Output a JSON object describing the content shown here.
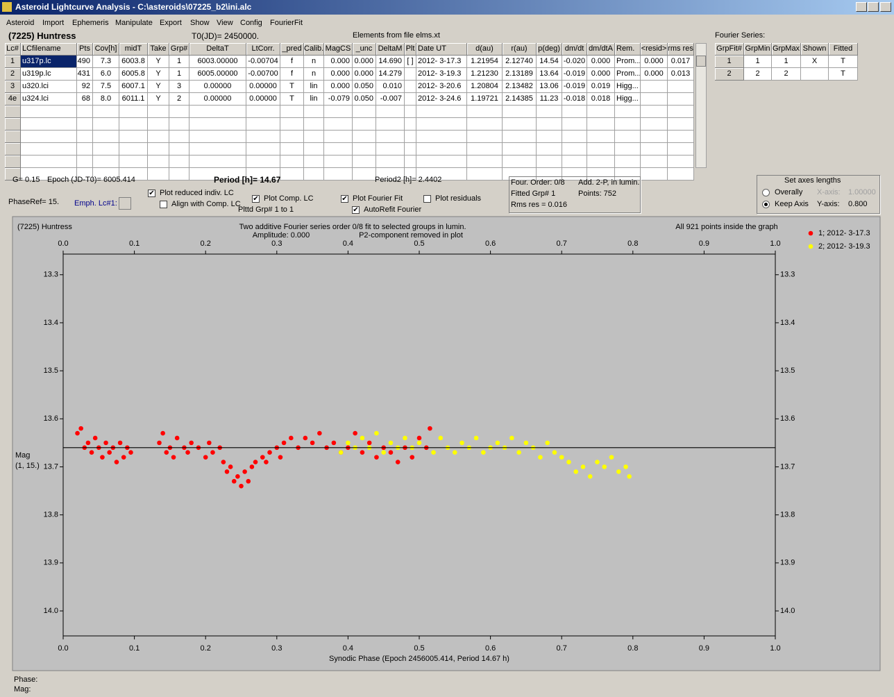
{
  "window": {
    "title": "Asteroid Lightcurve Analysis - C:\\asteroids\\07225_b2\\ini.alc"
  },
  "menu": [
    "Asteroid",
    "Import",
    "Ephemeris",
    "Manipulate",
    "Export",
    "Show",
    "View",
    "Config",
    "FourierFit"
  ],
  "header": {
    "asteroid": "(7225) Huntress",
    "t0": "T0(JD)= 2450000.",
    "elements": "Elements from file elms.xt"
  },
  "table": {
    "columns": [
      "Lc#",
      "LCfilename",
      "Pts",
      "Cov[h]",
      "midT",
      "Take",
      "Grp#",
      "DeltaT",
      "LtCorr.",
      "_pred",
      "Calib.",
      "MagCS",
      "_unc",
      "DeltaM",
      "Plt",
      "Date UT",
      "d(au)",
      "r(au)",
      "p(deg)",
      "dm/dt",
      "dm/dtA",
      "Rem.",
      "<resid>",
      "rms res"
    ],
    "rows": [
      [
        "1",
        "u317p.lc",
        "490",
        "7.3",
        "6003.8",
        "Y",
        "1",
        "6003.00000",
        "-0.00704",
        "f",
        "n",
        "0.000",
        "0.000",
        "14.690",
        "[ ]",
        "2012- 3-17.3",
        "1.21954",
        "2.12740",
        "14.54",
        "-0.020",
        "0.000",
        "Prom...",
        "0.000",
        "0.017"
      ],
      [
        "2",
        "u319p.lc",
        "431",
        "6.0",
        "6005.8",
        "Y",
        "1",
        "6005.00000",
        "-0.00700",
        "f",
        "n",
        "0.000",
        "0.000",
        "14.279",
        null,
        "2012- 3-19.3",
        "1.21230",
        "2.13189",
        "13.64",
        "-0.019",
        "0.000",
        "Prom...",
        "0.000",
        "0.013"
      ],
      [
        "3",
        "u320.lci",
        "92",
        "7.5",
        "6007.1",
        "Y",
        "3",
        "0.00000",
        "0.00000",
        "T",
        "lin",
        "0.000",
        "0.050",
        "0.010",
        null,
        "2012- 3-20.6",
        "1.20804",
        "2.13482",
        "13.06",
        "-0.019",
        "0.019",
        "Higg...",
        null,
        null
      ],
      [
        "4e",
        "u324.lci",
        "68",
        "8.0",
        "6011.1",
        "Y",
        "2",
        "0.00000",
        "0.00000",
        "T",
        "lin",
        "-0.079",
        "0.050",
        "-0.007",
        null,
        "2012- 3-24.6",
        "1.19721",
        "2.14385",
        "11.23",
        "-0.018",
        "0.018",
        "Higg...",
        null,
        null
      ]
    ]
  },
  "fourier": {
    "label": "Fourier Series:",
    "columns": [
      "GrpFit#",
      "GrpMin",
      "GrpMax",
      "Shown",
      "Fitted"
    ],
    "rows": [
      [
        "1",
        "1",
        "1",
        "X",
        "T"
      ],
      [
        "2",
        "2",
        "2",
        null,
        "T"
      ]
    ]
  },
  "info": {
    "g": "G= 0.15",
    "epoch": "Epoch (JD-T0)= 6005.414",
    "period": "Period [h]= 14.67",
    "period2": "Period2 [h]= 2.4402",
    "phase_ref": "PhaseRef= 15.",
    "emph": "Emph. Lc#1:",
    "plotted_groups": "Plttd Grp#  1   to   1"
  },
  "checkboxes": [
    {
      "label": "Plot reduced indiv. LC",
      "checked": true
    },
    {
      "label": "Align with Comp. LC",
      "checked": false
    },
    {
      "label": "Plot Comp. LC",
      "checked": true
    },
    {
      "label": "Plot Fourier Fit",
      "checked": true
    },
    {
      "label": "Plot residuals",
      "checked": false
    },
    {
      "label": "AutoRefit Fourier",
      "checked": true
    }
  ],
  "fit_box": [
    "Four. Order:  0/8",
    "Add. 2-P, in lumin.",
    "Fitted Grp# 1",
    "Points: 752",
    "Rms res    = 0.016"
  ],
  "axes_box": {
    "title": "Set axes lengths",
    "options": [
      {
        "label": "Overally",
        "selected": false
      },
      {
        "label": "Keep Axis",
        "selected": true
      }
    ],
    "x_label": "X-axis:",
    "x_value": "1.00000",
    "y_label": "Y-axis:",
    "y_value": "0.800"
  },
  "status": {
    "phase": "Phase:",
    "mag": "Mag:"
  },
  "chart_data": {
    "type": "scatter",
    "title": "(7225) Huntress",
    "subtitle": "Two additive Fourier series order 0/8 fit to selected groups in lumin.",
    "annotations": [
      "Amplitude: 0.000",
      "P2-component removed in plot",
      "All 921 points inside the graph"
    ],
    "x_label": "Synodic Phase (Epoch 2456005.414, Period 14.67 h)",
    "y_label": [
      "Mag",
      "(1, 15.)"
    ],
    "xlim": [
      0,
      1
    ],
    "xticks": [
      {
        "value": 0,
        "label": "0.0"
      },
      0.1,
      0.2,
      0.3,
      0.4,
      0.5,
      0.6,
      0.7,
      0.8,
      0.9,
      {
        "value": 1,
        "label": "1.0"
      }
    ],
    "ylim": [
      13.257,
      14.052
    ],
    "y_inverted": true,
    "yticks": [
      13.3,
      13.4,
      13.5,
      13.6,
      13.7,
      13.8,
      13.9,
      {
        "value": 14,
        "label": "14.0"
      }
    ],
    "fit_value": 13.66,
    "legend": "top-right",
    "series": [
      {
        "name": "1; 2012- 3-17.3",
        "color": "#ff0000",
        "x": [
          0.02,
          0.025,
          0.03,
          0.035,
          0.04,
          0.045,
          0.05,
          0.055,
          0.06,
          0.065,
          0.07,
          0.075,
          0.08,
          0.085,
          0.09,
          0.095,
          0.135,
          0.14,
          0.145,
          0.15,
          0.155,
          0.16,
          0.17,
          0.175,
          0.18,
          0.19,
          0.2,
          0.205,
          0.21,
          0.22,
          0.225,
          0.23,
          0.235,
          0.24,
          0.245,
          0.25,
          0.255,
          0.26,
          0.265,
          0.27,
          0.28,
          0.285,
          0.29,
          0.3,
          0.305,
          0.31,
          0.32,
          0.33,
          0.34,
          0.35,
          0.36,
          0.37,
          0.38,
          0.39,
          0.4,
          0.41,
          0.42,
          0.43,
          0.44,
          0.45,
          0.46,
          0.47,
          0.48,
          0.49,
          0.5,
          0.51,
          0.515
        ],
        "values": [
          13.63,
          13.62,
          13.66,
          13.65,
          13.67,
          13.64,
          13.66,
          13.68,
          13.65,
          13.67,
          13.66,
          13.69,
          13.65,
          13.68,
          13.66,
          13.67,
          13.65,
          13.63,
          13.67,
          13.66,
          13.68,
          13.64,
          13.66,
          13.67,
          13.65,
          13.66,
          13.68,
          13.65,
          13.67,
          13.66,
          13.69,
          13.71,
          13.7,
          13.73,
          13.72,
          13.74,
          13.71,
          13.73,
          13.7,
          13.69,
          13.68,
          13.69,
          13.67,
          13.66,
          13.68,
          13.65,
          13.64,
          13.66,
          13.64,
          13.65,
          13.63,
          13.66,
          13.65,
          13.67,
          13.66,
          13.63,
          13.67,
          13.65,
          13.68,
          13.66,
          13.67,
          13.69,
          13.66,
          13.68,
          13.64,
          13.66,
          13.62
        ]
      },
      {
        "name": "2; 2012- 3-19.3",
        "color": "#ffff00",
        "x": [
          0.39,
          0.4,
          0.41,
          0.42,
          0.43,
          0.44,
          0.45,
          0.46,
          0.47,
          0.48,
          0.49,
          0.5,
          0.52,
          0.53,
          0.54,
          0.55,
          0.56,
          0.57,
          0.58,
          0.59,
          0.6,
          0.61,
          0.62,
          0.63,
          0.64,
          0.65,
          0.66,
          0.67,
          0.68,
          0.69,
          0.7,
          0.71,
          0.72,
          0.73,
          0.74,
          0.75,
          0.76,
          0.77,
          0.78,
          0.79,
          0.795
        ],
        "values": [
          13.67,
          13.65,
          13.66,
          13.64,
          13.66,
          13.63,
          13.67,
          13.65,
          13.66,
          13.64,
          13.66,
          13.65,
          13.67,
          13.64,
          13.66,
          13.67,
          13.65,
          13.66,
          13.64,
          13.67,
          13.66,
          13.65,
          13.66,
          13.64,
          13.67,
          13.65,
          13.66,
          13.68,
          13.65,
          13.67,
          13.68,
          13.69,
          13.71,
          13.7,
          13.72,
          13.69,
          13.7,
          13.68,
          13.71,
          13.7,
          13.72
        ]
      }
    ]
  }
}
